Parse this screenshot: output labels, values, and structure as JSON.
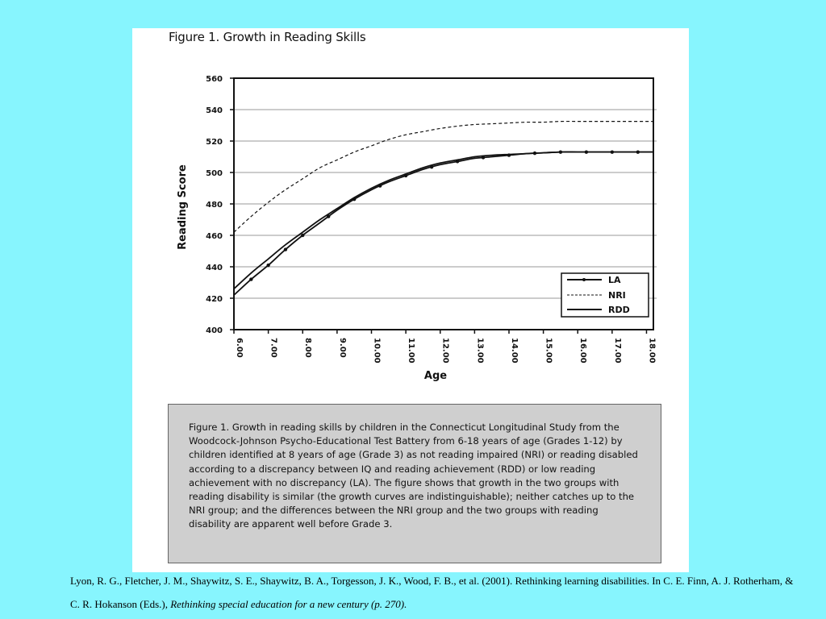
{
  "figure_title": "Figure 1.  Growth in Reading Skills",
  "caption": "Figure 1.  Growth in reading skills by children in the Connecticut Longitudinal Study from the Woodcock-Johnson Psycho-Educational Test Battery from 6-18 years of age (Grades 1-12) by children identified at 8 years of age (Grade 3) as not reading impaired (NRI) or reading disabled according to a discrepancy between IQ and reading achievement (RDD) or low reading achievement with no discrepancy (LA). The figure shows that growth in the two groups with reading disability is similar (the growth curves are indistinguishable); neither catches up to the NRI group; and the differences between the NRI group and the two groups with reading disability are apparent well before Grade 3.",
  "citation": {
    "text": "Lyon, R. G., Fletcher, J. M., Shaywitz, S. E., Shaywitz, B. A., Torgesson, J. K., Wood, F. B., et al. (2001). Rethinking learning disabilities. In C. E. Finn, A. J. Rotherham, & C. R. Hokanson (Eds.), ",
    "italic": "Rethinking special education for a new century (p. 270)."
  },
  "colors": {
    "background": "#87F5FE",
    "panel": "#ffffff",
    "caption_box": "#cfcfcf",
    "lines": "#111111"
  },
  "chart_data": {
    "type": "line",
    "title": "",
    "xlabel": "Age",
    "ylabel": "Reading Score",
    "xlim": [
      6,
      18.2
    ],
    "ylim": [
      400,
      560
    ],
    "x_ticks": [
      6,
      7,
      8,
      9,
      10,
      11,
      12,
      13,
      14,
      15,
      16,
      17,
      18
    ],
    "x_tick_labels": [
      "6.00",
      "7.00",
      "8.00",
      "9.00",
      "10.00",
      "11.00",
      "12.00",
      "13.00",
      "14.00",
      "15.00",
      "16.00",
      "17.00",
      "18.00"
    ],
    "y_ticks": [
      400,
      420,
      440,
      460,
      480,
      500,
      520,
      540,
      560
    ],
    "y_tick_labels": [
      "400",
      "420",
      "440",
      "460",
      "480",
      "500",
      "520",
      "540",
      "560"
    ],
    "grid": "horizontal",
    "legend_position": "bottom-right",
    "series": [
      {
        "name": "LA",
        "style": "solid-markers",
        "x": [
          6,
          6.5,
          7,
          7.5,
          8,
          8.5,
          9,
          9.5,
          10,
          10.5,
          11,
          11.5,
          12,
          12.5,
          13,
          13.5,
          14,
          14.5,
          15,
          15.5,
          16,
          16.5,
          17,
          17.5,
          18.2
        ],
        "y": [
          422,
          432,
          441,
          451,
          460,
          468,
          476,
          483,
          489,
          494,
          498,
          502,
          505,
          507,
          509,
          510,
          511,
          512,
          512.5,
          513,
          513,
          513,
          513,
          513,
          513
        ]
      },
      {
        "name": "NRI",
        "style": "dashed",
        "x": [
          6,
          6.5,
          7,
          7.5,
          8,
          8.5,
          9,
          9.5,
          10,
          10.5,
          11,
          11.5,
          12,
          12.5,
          13,
          13.5,
          14,
          14.5,
          15,
          15.5,
          16,
          16.5,
          17,
          17.5,
          18.2
        ],
        "y": [
          462,
          472,
          481,
          489,
          496,
          503,
          508,
          513,
          517,
          521,
          524,
          526,
          528,
          529.5,
          530.5,
          531,
          531.5,
          532,
          532,
          532.5,
          532.5,
          532.5,
          532.5,
          532.5,
          532.5
        ]
      },
      {
        "name": "RDD",
        "style": "solid",
        "x": [
          6,
          6.5,
          7,
          7.5,
          8,
          8.5,
          9,
          9.5,
          10,
          10.5,
          11,
          11.5,
          12,
          12.5,
          13,
          13.5,
          14,
          14.5,
          15,
          15.5,
          16,
          16.5,
          17,
          17.5,
          18.2
        ],
        "y": [
          426,
          436,
          445,
          454,
          462,
          470,
          477,
          484,
          490,
          495,
          499,
          503,
          506,
          508,
          510,
          511,
          511.5,
          512,
          512.5,
          513,
          513,
          513,
          513,
          513,
          513
        ]
      }
    ],
    "la_marker_x": [
      6.5,
      7,
      7.5,
      8,
      8.75,
      9.5,
      10.25,
      11,
      11.75,
      12.5,
      13.25,
      14,
      14.75,
      15.5,
      16.25,
      17,
      17.75
    ]
  }
}
